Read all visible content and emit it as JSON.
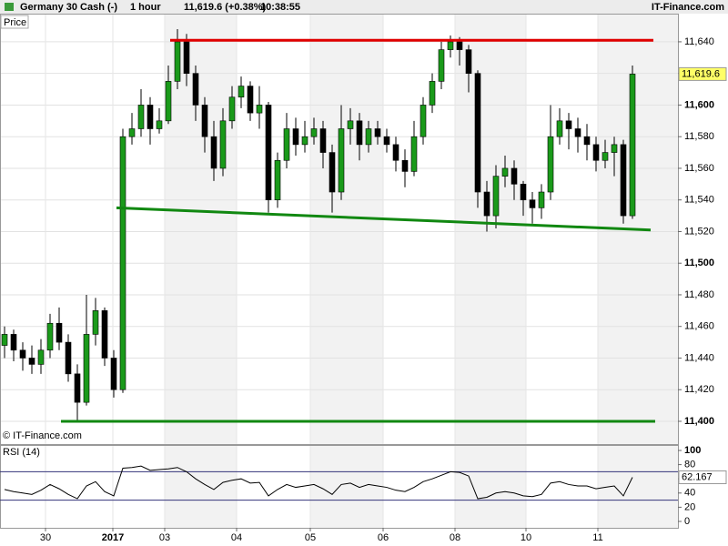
{
  "header": {
    "title": "Germany 30 Cash (-)",
    "interval": "1 hour",
    "quote": "11,619.6 (+0.38%)",
    "time": "10:38:55",
    "brand": "IT-Finance.com"
  },
  "chart_data": [
    {
      "type": "candlestick",
      "label": "Price",
      "copyright": "© IT-Finance.com",
      "x": [
        0,
        1,
        2,
        3,
        4,
        5,
        6,
        7,
        8,
        9,
        10,
        11,
        12,
        13,
        14,
        15,
        16,
        17,
        18,
        19,
        20,
        21,
        22,
        23,
        24,
        25,
        26,
        27,
        28,
        29,
        30,
        31,
        32,
        33,
        34,
        35,
        36,
        37,
        38,
        39,
        40,
        41,
        42,
        43,
        44,
        45,
        46,
        47,
        48,
        49,
        50,
        51,
        52,
        53,
        54,
        55,
        56,
        57,
        58,
        59,
        60,
        61,
        62,
        63,
        64,
        65,
        66,
        67,
        68,
        69
      ],
      "open": [
        11448,
        11455,
        11445,
        11440,
        11436,
        11445,
        11462,
        11450,
        11430,
        11412,
        11455,
        11470,
        11440,
        11420,
        11580,
        11585,
        11600,
        11585,
        11590,
        11615,
        11640,
        11620,
        11600,
        11580,
        11560,
        11590,
        11605,
        11612,
        11595,
        11600,
        11540,
        11565,
        11585,
        11575,
        11580,
        11585,
        11570,
        11545,
        11585,
        11590,
        11575,
        11585,
        11580,
        11575,
        11565,
        11558,
        11580,
        11600,
        11615,
        11635,
        11640,
        11635,
        11620,
        11545,
        11530,
        11555,
        11560,
        11550,
        11540,
        11535,
        11545,
        11580,
        11590,
        11585,
        11580,
        11575,
        11565,
        11570,
        11575,
        11530
      ],
      "high": [
        11460,
        11458,
        11450,
        11448,
        11452,
        11468,
        11472,
        11455,
        11436,
        11480,
        11478,
        11472,
        11445,
        11585,
        11595,
        11610,
        11605,
        11598,
        11625,
        11648,
        11645,
        11625,
        11605,
        11590,
        11598,
        11612,
        11618,
        11615,
        11612,
        11602,
        11570,
        11595,
        11592,
        11590,
        11592,
        11590,
        11575,
        11600,
        11598,
        11595,
        11590,
        11590,
        11585,
        11580,
        11572,
        11590,
        11605,
        11620,
        11640,
        11644,
        11643,
        11638,
        11622,
        11552,
        11562,
        11568,
        11565,
        11552,
        11545,
        11550,
        11600,
        11598,
        11595,
        11592,
        11588,
        11580,
        11578,
        11580,
        11578,
        11625
      ],
      "low": [
        11440,
        11438,
        11432,
        11430,
        11430,
        11440,
        11445,
        11425,
        11400,
        11410,
        11448,
        11435,
        11415,
        11418,
        11575,
        11580,
        11575,
        11582,
        11588,
        11610,
        11612,
        11590,
        11570,
        11552,
        11555,
        11585,
        11598,
        11590,
        11585,
        11532,
        11535,
        11560,
        11568,
        11570,
        11575,
        11560,
        11532,
        11540,
        11575,
        11565,
        11570,
        11575,
        11570,
        11558,
        11548,
        11555,
        11575,
        11595,
        11610,
        11630,
        11625,
        11608,
        11535,
        11520,
        11522,
        11548,
        11540,
        11530,
        11525,
        11528,
        11540,
        11575,
        11572,
        11570,
        11565,
        11558,
        11560,
        11555,
        11525,
        11528
      ],
      "close": [
        11455,
        11445,
        11440,
        11436,
        11445,
        11462,
        11450,
        11430,
        11412,
        11455,
        11470,
        11440,
        11420,
        11580,
        11585,
        11600,
        11585,
        11590,
        11615,
        11640,
        11620,
        11600,
        11580,
        11560,
        11590,
        11605,
        11612,
        11595,
        11600,
        11540,
        11565,
        11585,
        11575,
        11580,
        11585,
        11570,
        11545,
        11585,
        11590,
        11575,
        11585,
        11580,
        11575,
        11565,
        11558,
        11580,
        11600,
        11615,
        11635,
        11640,
        11635,
        11620,
        11545,
        11530,
        11555,
        11560,
        11550,
        11540,
        11535,
        11545,
        11580,
        11590,
        11585,
        11580,
        11575,
        11565,
        11570,
        11575,
        11530,
        11619.6
      ],
      "up_color": "#1a9a1a",
      "down_color": "#000000",
      "xlim": [
        -0.5,
        74
      ],
      "ylim": [
        11385.6,
        11657.8
      ],
      "yticks": [
        {
          "value": 11400,
          "label": "11,400"
        },
        {
          "value": 11420,
          "label": "11,420"
        },
        {
          "value": 11440,
          "label": "11,440"
        },
        {
          "value": 11460,
          "label": "11,460"
        },
        {
          "value": 11480,
          "label": "11,480"
        },
        {
          "value": 11500,
          "label": "11,500"
        },
        {
          "value": 11520,
          "label": "11,520"
        },
        {
          "value": 11540,
          "label": "11,540"
        },
        {
          "value": 11560,
          "label": "11,560"
        },
        {
          "value": 11580,
          "label": "11,580"
        },
        {
          "value": 11600,
          "label": "11,600"
        },
        {
          "value": 11620,
          "label": "11,620"
        },
        {
          "value": 11640,
          "label": "11,640"
        }
      ],
      "xticks": [
        {
          "value": 4.5,
          "label": "30"
        },
        {
          "value": 11.9,
          "label": "2017",
          "bold": true
        },
        {
          "value": 17.6,
          "label": "03"
        },
        {
          "value": 25.5,
          "label": "04"
        },
        {
          "value": 33.6,
          "label": "05"
        },
        {
          "value": 41.6,
          "label": "06"
        },
        {
          "value": 49.5,
          "label": "08"
        },
        {
          "value": 57.3,
          "label": "10"
        },
        {
          "value": 65.2,
          "label": "11"
        }
      ],
      "last_price": {
        "value": 11619.6,
        "label": "11,619.6"
      },
      "lines": [
        {
          "color": "#e00000",
          "x": [
            18.2,
            71.3
          ],
          "y": [
            11641,
            11641
          ]
        },
        {
          "color": "#118811",
          "x": [
            12.3,
            71.0
          ],
          "y": [
            11535,
            11521
          ]
        },
        {
          "color": "#118811",
          "x": [
            6.2,
            71.5
          ],
          "y": [
            11400,
            11400
          ]
        }
      ]
    },
    {
      "type": "line",
      "title": "RSI (14)",
      "x": [
        0,
        1,
        2,
        3,
        4,
        5,
        6,
        7,
        8,
        9,
        10,
        11,
        12,
        13,
        14,
        15,
        16,
        17,
        18,
        19,
        20,
        21,
        22,
        23,
        24,
        25,
        26,
        27,
        28,
        29,
        30,
        31,
        32,
        33,
        34,
        35,
        36,
        37,
        38,
        39,
        40,
        41,
        42,
        43,
        44,
        45,
        46,
        47,
        48,
        49,
        50,
        51,
        52,
        53,
        54,
        55,
        56,
        57,
        58,
        59,
        60,
        61,
        62,
        63,
        64,
        65,
        66,
        67,
        68,
        69
      ],
      "values": [
        45,
        42,
        40,
        38,
        44,
        52,
        46,
        38,
        32,
        50,
        56,
        42,
        36,
        75,
        76,
        78,
        72,
        73,
        74,
        76,
        70,
        60,
        52,
        45,
        55,
        58,
        60,
        54,
        55,
        36,
        45,
        52,
        48,
        50,
        52,
        46,
        38,
        52,
        54,
        48,
        52,
        50,
        48,
        44,
        42,
        48,
        56,
        60,
        65,
        70,
        69,
        64,
        32,
        34,
        40,
        42,
        40,
        36,
        35,
        38,
        54,
        56,
        52,
        50,
        50,
        46,
        48,
        50,
        36,
        62.167
      ],
      "color": "#000000",
      "level_color": "#33337a",
      "levels": [
        30,
        70
      ],
      "xlim": [
        -0.5,
        74
      ],
      "ylim": [
        -9,
        107.7
      ],
      "yticks": [
        0,
        20,
        40,
        60,
        80,
        100
      ]
    }
  ]
}
